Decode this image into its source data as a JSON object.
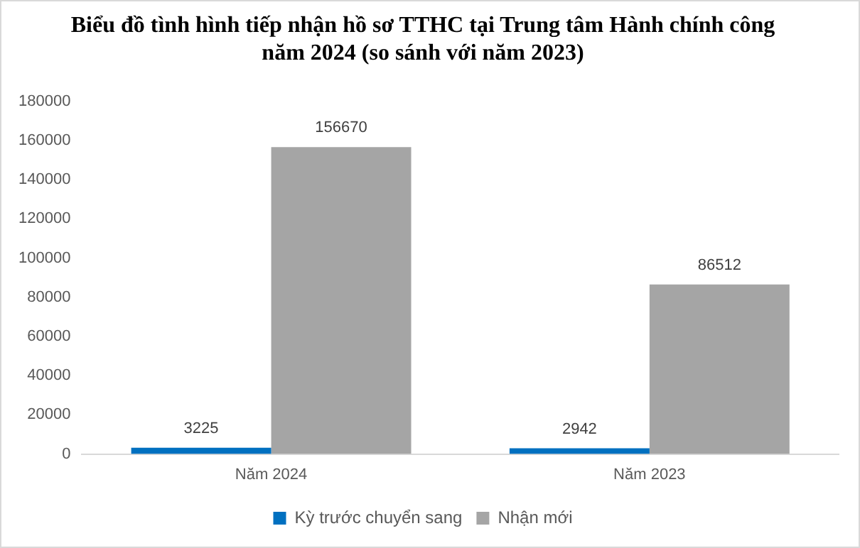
{
  "chart_data": {
    "type": "bar",
    "title": "Biểu đồ tình hình tiếp nhận hồ sơ TTHC tại Trung tâm Hành chính công\nnăm 2024 (so sánh với năm 2023)",
    "categories": [
      "Năm 2024",
      "Năm 2023"
    ],
    "series": [
      {
        "name": "Kỳ trước chuyển sang",
        "color": "#0070c0",
        "values": [
          3225,
          2942
        ]
      },
      {
        "name": "Nhận mới",
        "color": "#a5a5a5",
        "values": [
          156670,
          86512
        ]
      }
    ],
    "ylim": [
      0,
      180000
    ],
    "yticks": [
      0,
      20000,
      40000,
      60000,
      80000,
      100000,
      120000,
      140000,
      160000,
      180000
    ],
    "data_labels": true,
    "legend": "bottom",
    "grid": false
  }
}
